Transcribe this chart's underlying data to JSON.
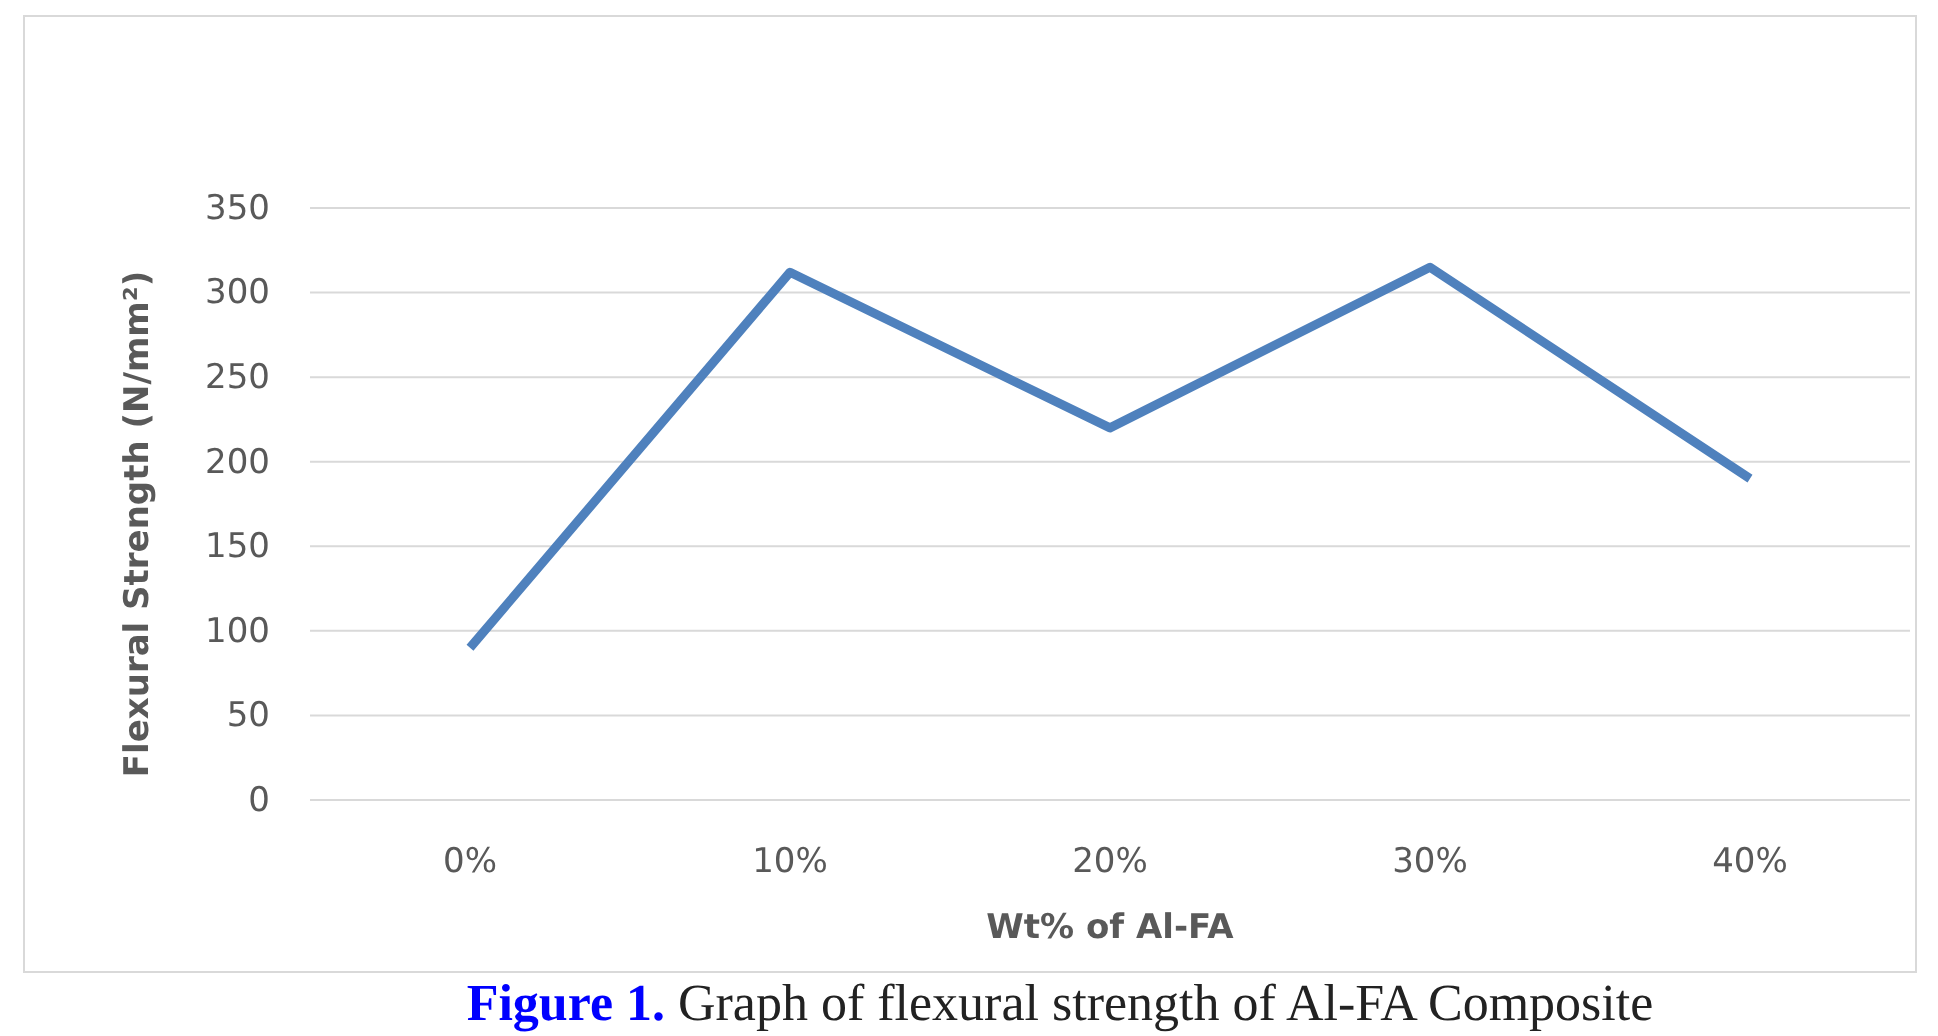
{
  "chart_data": {
    "type": "line",
    "xlabel": "Wt% of Al-FA",
    "ylabel": "Flexural Strength (N/mm²)",
    "categories": [
      "0%",
      "10%",
      "20%",
      "30%",
      "40%"
    ],
    "series": [
      {
        "color": "#4f81bd",
        "values": [
          90,
          312,
          220,
          315,
          190
        ]
      }
    ],
    "ylim": [
      0,
      350
    ],
    "yticks": [
      0,
      50,
      100,
      150,
      200,
      250,
      300,
      350
    ],
    "grid": "y",
    "marker": "none",
    "line_style": "solid",
    "annotations": [
      "Figure 1.",
      "Graph of flexural strength of Al-FA Composite"
    ]
  }
}
